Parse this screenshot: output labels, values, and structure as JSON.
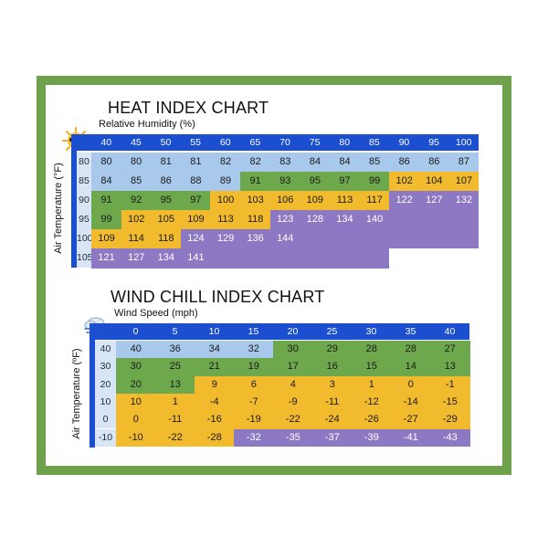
{
  "chart_data": [
    {
      "type": "table",
      "title": "HEAT INDEX CHART",
      "xlabel": "Relative Humidity (%)",
      "ylabel": "Air Temperature (°F)",
      "columns": [
        "40",
        "45",
        "50",
        "55",
        "60",
        "65",
        "70",
        "75",
        "80",
        "85",
        "90",
        "95",
        "100"
      ],
      "rows": [
        "80",
        "85",
        "90",
        "95",
        "100",
        "105"
      ],
      "values": [
        [
          "80",
          "80",
          "81",
          "81",
          "82",
          "82",
          "83",
          "84",
          "84",
          "85",
          "86",
          "86",
          "87"
        ],
        [
          "84",
          "85",
          "86",
          "88",
          "89",
          "91",
          "93",
          "95",
          "97",
          "99",
          "102",
          "104",
          "107"
        ],
        [
          "91",
          "92",
          "95",
          "97",
          "100",
          "103",
          "106",
          "109",
          "113",
          "117",
          "122",
          "127",
          "132"
        ],
        [
          "99",
          "102",
          "105",
          "109",
          "113",
          "118",
          "123",
          "128",
          "134",
          "140",
          "",
          "",
          ""
        ],
        [
          "109",
          "114",
          "118",
          "124",
          "129",
          "136",
          "144",
          "",
          "",
          "",
          "",
          "",
          ""
        ],
        [
          "121",
          "127",
          "134",
          "141",
          "",
          "",
          "",
          "",
          "",
          "",
          "",
          "",
          ""
        ]
      ],
      "levels": [
        [
          "b",
          "b",
          "b",
          "b",
          "b",
          "b",
          "b",
          "b",
          "b",
          "b",
          "b",
          "b",
          "b"
        ],
        [
          "b",
          "b",
          "b",
          "b",
          "b",
          "g",
          "g",
          "g",
          "g",
          "g",
          "y",
          "y",
          "y"
        ],
        [
          "g",
          "g",
          "g",
          "g",
          "y",
          "y",
          "y",
          "y",
          "y",
          "y",
          "p",
          "p",
          "p"
        ],
        [
          "g",
          "y",
          "y",
          "y",
          "y",
          "y",
          "p",
          "p",
          "p",
          "p",
          "p",
          "p",
          "p"
        ],
        [
          "y",
          "y",
          "y",
          "p",
          "p",
          "p",
          "p",
          "p",
          "p",
          "p",
          "p",
          "p",
          "p"
        ],
        [
          "p",
          "p",
          "p",
          "p",
          "p",
          "p",
          "p",
          "p",
          "p",
          "p",
          "x",
          "x",
          "x"
        ]
      ],
      "icon": "sun-with-sunglasses-icon"
    },
    {
      "type": "table",
      "title": "WIND CHILL INDEX CHART",
      "xlabel": "Wind Speed (mph)",
      "ylabel": "Air Temperature (ºF)",
      "columns": [
        "0",
        "5",
        "10",
        "15",
        "20",
        "25",
        "30",
        "35",
        "40"
      ],
      "rows": [
        "40",
        "30",
        "20",
        "10",
        "0",
        "-10"
      ],
      "values": [
        [
          "40",
          "36",
          "34",
          "32",
          "30",
          "29",
          "28",
          "28",
          "27"
        ],
        [
          "30",
          "25",
          "21",
          "19",
          "17",
          "16",
          "15",
          "14",
          "13"
        ],
        [
          "20",
          "13",
          "9",
          "6",
          "4",
          "3",
          "1",
          "0",
          "-1"
        ],
        [
          "10",
          "1",
          "-4",
          "-7",
          "-9",
          "-11",
          "-12",
          "-14",
          "-15"
        ],
        [
          "0",
          "-11",
          "-16",
          "-19",
          "-22",
          "-24",
          "-26",
          "-27",
          "-29"
        ],
        [
          "-10",
          "-22",
          "-28",
          "-32",
          "-35",
          "-37",
          "-39",
          "-41",
          "-43"
        ]
      ],
      "levels": [
        [
          "b",
          "b",
          "b",
          "b",
          "g",
          "g",
          "g",
          "g",
          "g"
        ],
        [
          "g",
          "g",
          "g",
          "g",
          "g",
          "g",
          "g",
          "g",
          "g"
        ],
        [
          "g",
          "g",
          "y",
          "y",
          "y",
          "y",
          "y",
          "y",
          "y"
        ],
        [
          "y",
          "y",
          "y",
          "y",
          "y",
          "y",
          "y",
          "y",
          "y"
        ],
        [
          "y",
          "y",
          "y",
          "y",
          "y",
          "y",
          "y",
          "y",
          "y"
        ],
        [
          "y",
          "y",
          "y",
          "p",
          "p",
          "p",
          "p",
          "p",
          "p"
        ]
      ],
      "icon": "cloud-with-wind-icon"
    }
  ],
  "colors": {
    "frame": "#6fa04b",
    "header": "#1b4fd0",
    "b": "#a9c9ec",
    "g": "#6ea84c",
    "y": "#f2bb2e",
    "p": "#8d78c3",
    "x": "#ffffff"
  }
}
